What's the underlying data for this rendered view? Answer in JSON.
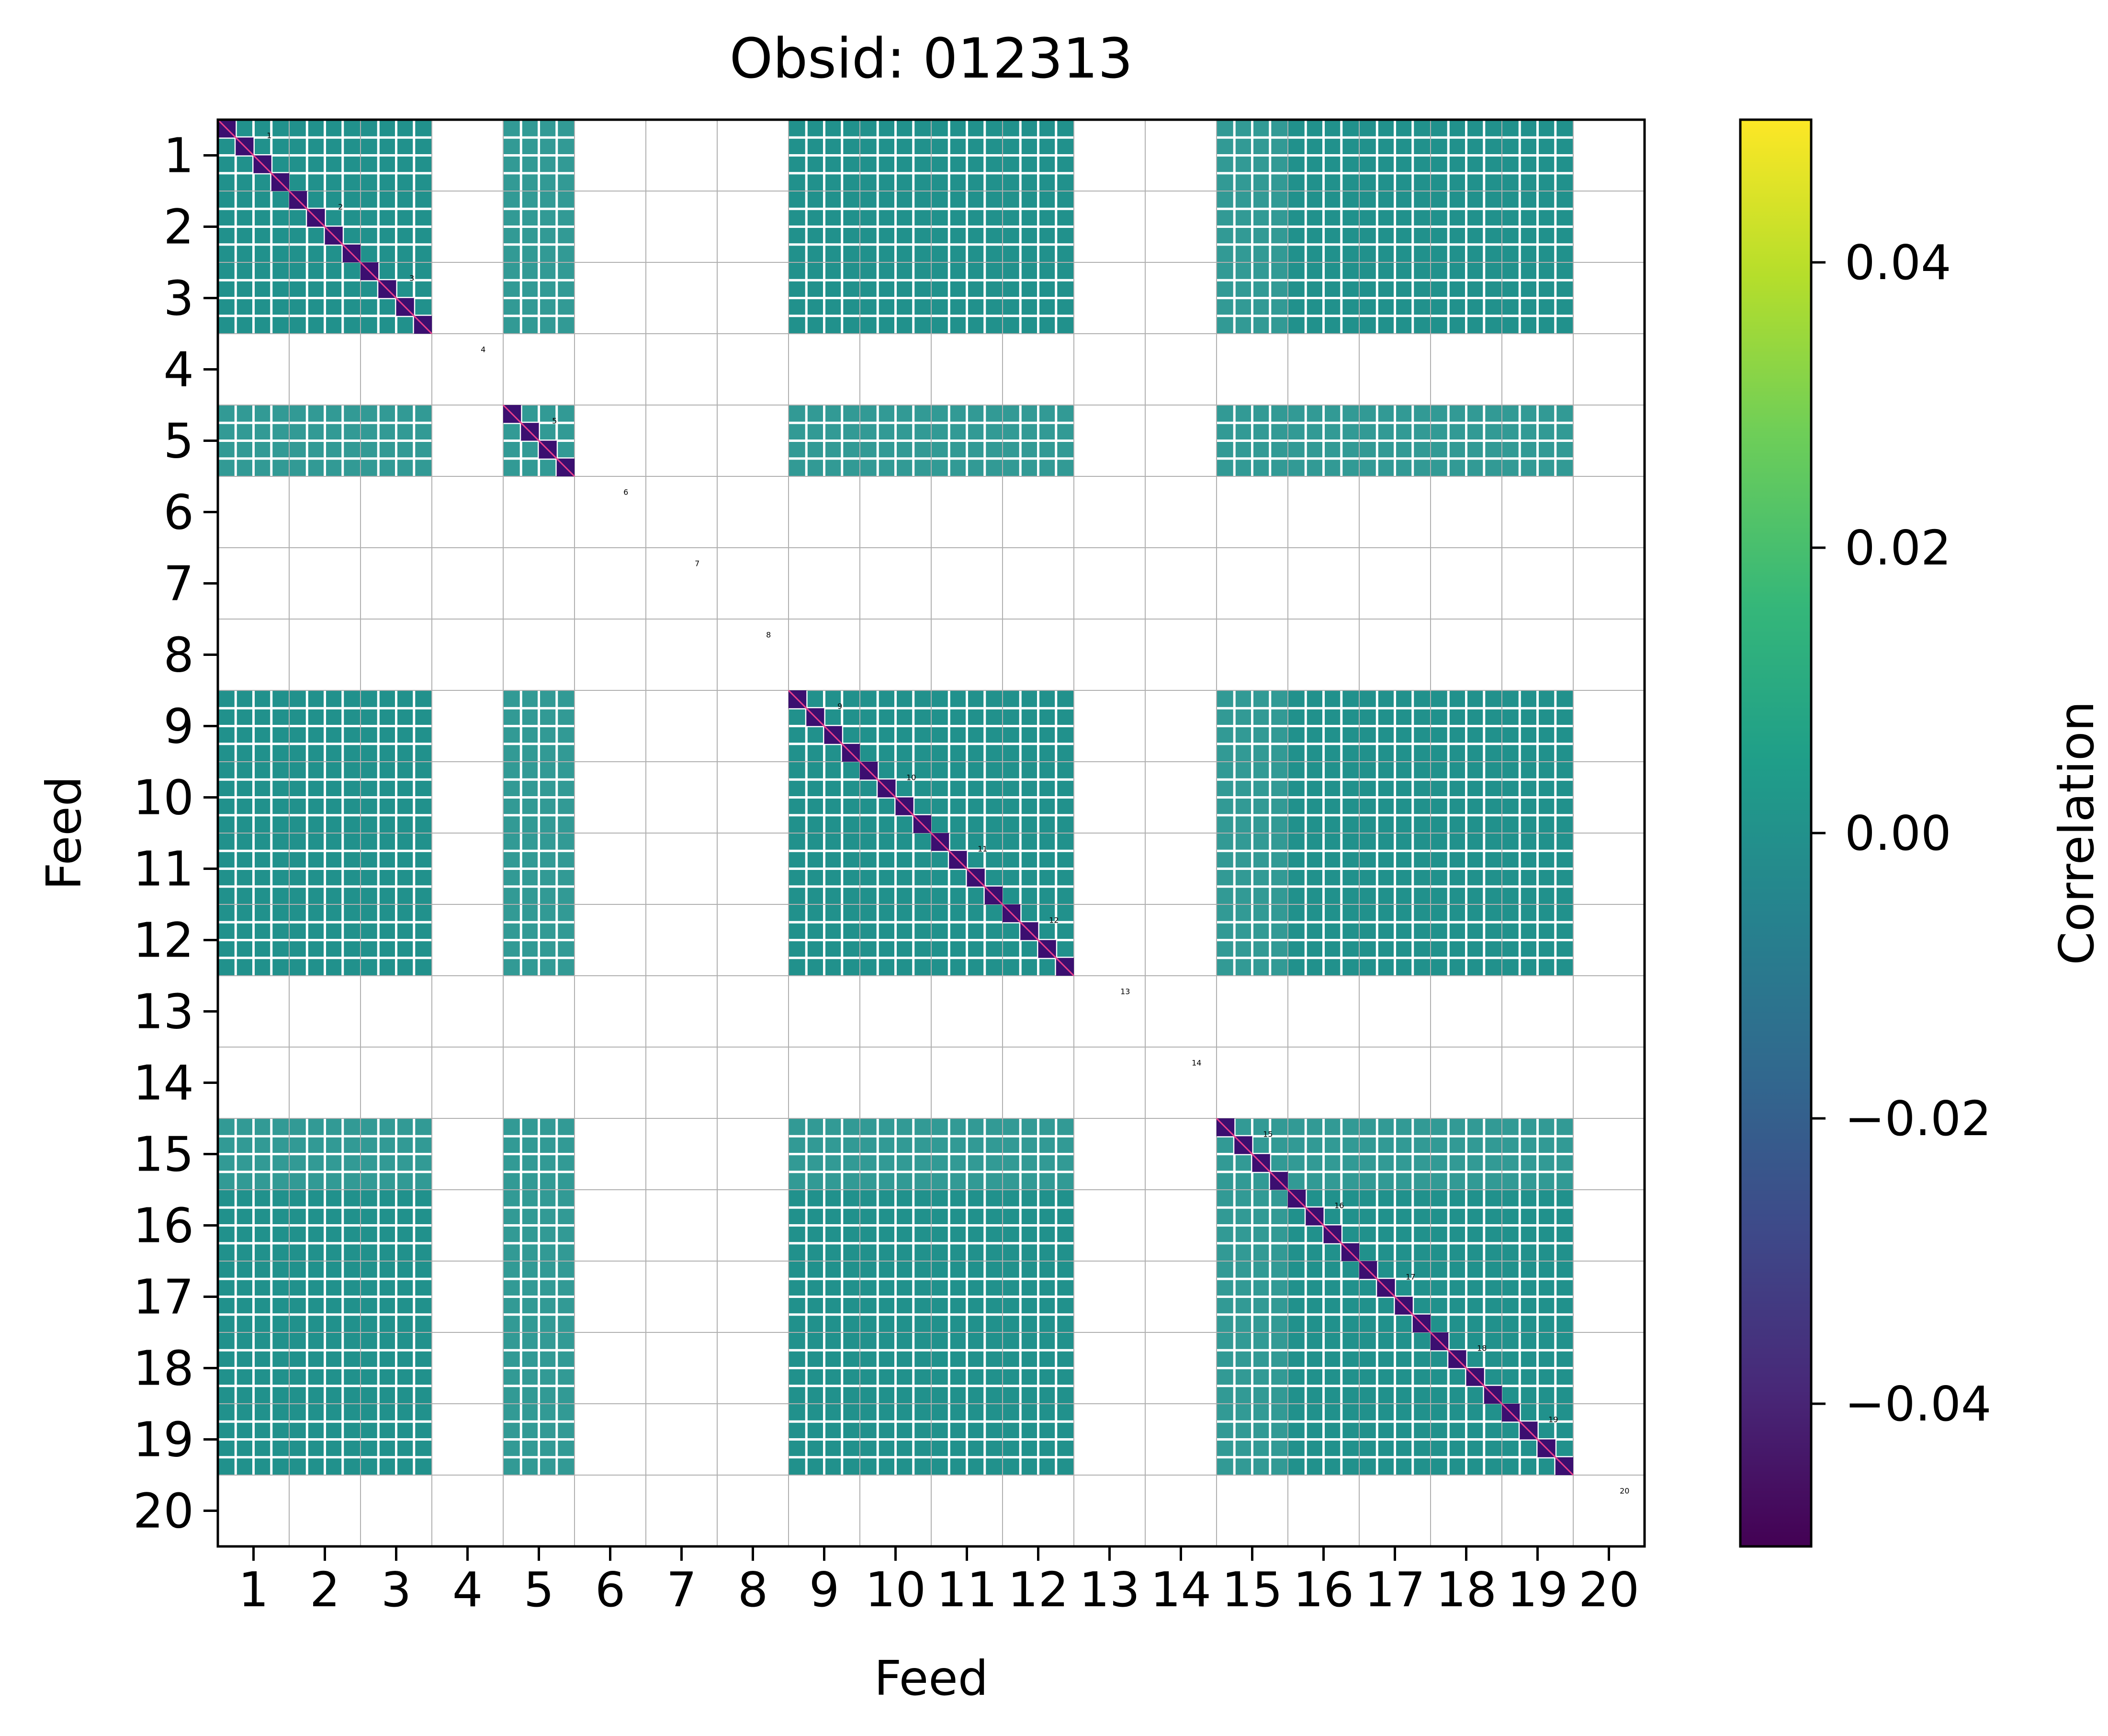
{
  "chart_data": {
    "type": "heatmap",
    "title": "Obsid: 012313",
    "xlabel": "Feed",
    "ylabel": "Feed",
    "feeds": [
      "1",
      "2",
      "3",
      "4",
      "5",
      "6",
      "7",
      "8",
      "9",
      "10",
      "11",
      "12",
      "13",
      "14",
      "15",
      "16",
      "17",
      "18",
      "19",
      "20"
    ],
    "active_feeds": [
      1,
      2,
      3,
      5,
      9,
      10,
      11,
      12,
      15,
      16,
      17,
      18,
      19
    ],
    "sparse_feeds": [
      5,
      15
    ],
    "inactive_feeds": [
      4,
      6,
      7,
      8,
      13,
      14,
      20
    ],
    "diag_labels": [
      "1",
      "2",
      "3",
      "4",
      "5",
      "6",
      "7",
      "8",
      "9",
      "10",
      "11",
      "12",
      "13",
      "14",
      "15",
      "16",
      "17",
      "18",
      "19",
      "20"
    ],
    "offdiag_value": 0.0,
    "diag_value_range": [
      -0.05,
      0.05
    ],
    "colorbar": {
      "label": "Correlation",
      "vmin": -0.05,
      "vmax": 0.05,
      "ticks": [
        "−0.04",
        "−0.02",
        "0.00",
        "0.02",
        "0.04"
      ],
      "tick_values": [
        -0.04,
        -0.02,
        0.0,
        0.02,
        0.04
      ],
      "colormap": "viridis"
    },
    "colors": {
      "cell": "#21918c",
      "diag_dark": "#3b0f70",
      "diag_line": "#e83e8c",
      "grid": "#b0b0b0",
      "separator": "#ffffff"
    }
  }
}
